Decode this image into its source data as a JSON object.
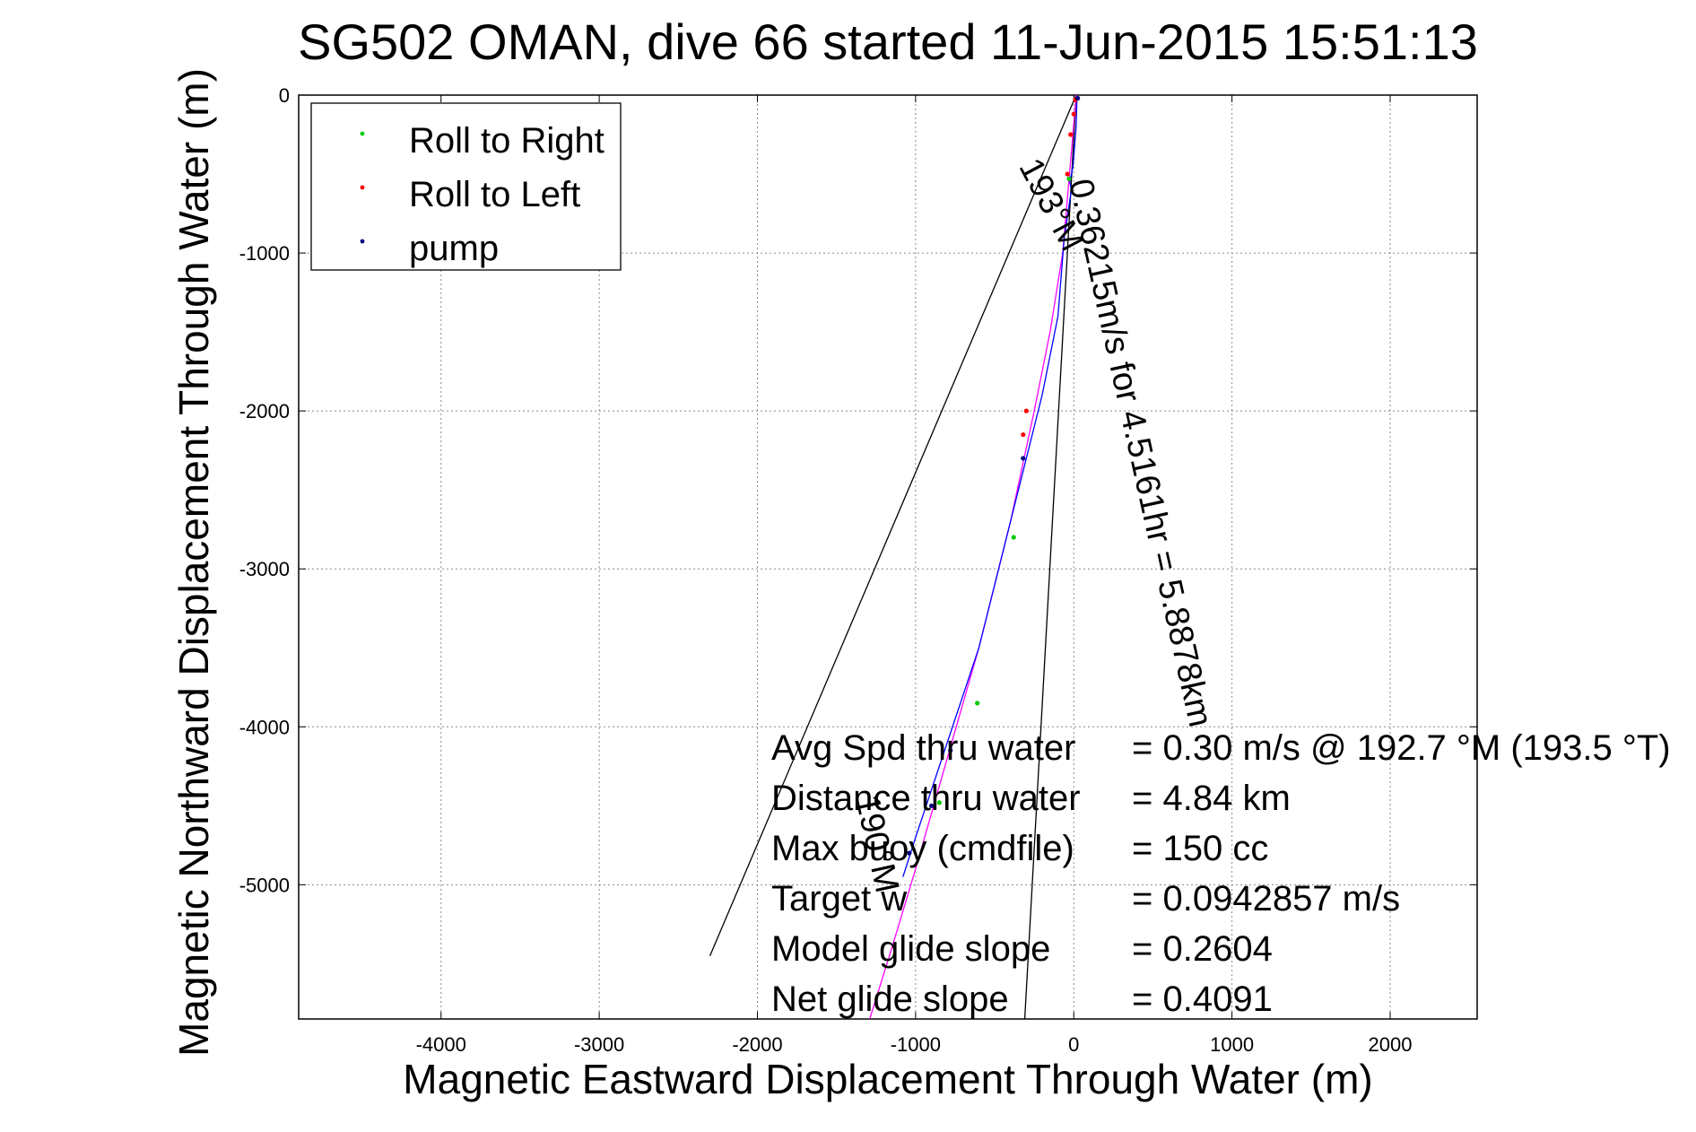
{
  "chart_data": {
    "type": "line",
    "title": "SG502 OMAN, dive 66 started 11-Jun-2015 15:51:13",
    "xlabel": "Magnetic Eastward Displacement Through Water (m)",
    "ylabel": "Magnetic Northward Displacement Through Water (m)",
    "xlim": [
      -4900,
      2550
    ],
    "ylim": [
      -5850,
      0
    ],
    "x_ticks": [
      -4000,
      -3000,
      -2000,
      -1000,
      0,
      1000,
      2000
    ],
    "y_ticks": [
      0,
      -1000,
      -2000,
      -3000,
      -4000,
      -5000
    ],
    "grid": true,
    "legend": {
      "placement": "top-left",
      "entries": [
        {
          "label": "Roll to Right",
          "color": "#00cc00"
        },
        {
          "label": "Roll to Left",
          "color": "#ff0000"
        },
        {
          "label": "pump",
          "color": "#000080"
        }
      ]
    },
    "series": [
      {
        "color": "#ff00ff",
        "x": [
          15,
          -10,
          -70,
          -150,
          -250,
          -400,
          -600,
          -800,
          -1000,
          -1150,
          -1290
        ],
        "y": [
          0,
          -300,
          -1000,
          -1500,
          -2000,
          -2700,
          -3500,
          -4200,
          -4900,
          -5400,
          -5850
        ]
      },
      {
        "color": "#0000ff",
        "x": [
          20,
          15,
          -5,
          -25,
          -15,
          -60,
          -100,
          -200,
          -300,
          -450,
          -600,
          -800,
          -1000,
          -1080
        ],
        "y": [
          -20,
          -200,
          -450,
          -550,
          -600,
          -900,
          -1400,
          -1900,
          -2300,
          -2900,
          -3500,
          -4100,
          -4700,
          -4950
        ]
      }
    ],
    "envelope_lines": [
      {
        "color": "#000000",
        "x": [
          15,
          -2300
        ],
        "y": [
          0,
          -5450
        ]
      },
      {
        "color": "#000000",
        "x": [
          15,
          -310
        ],
        "y": [
          0,
          -5850
        ]
      }
    ],
    "roll_right_points": {
      "x": [
        -30,
        -380,
        -610,
        -850
      ],
      "y": [
        -530,
        -2800,
        -3850,
        -4480
      ]
    },
    "roll_left_points": {
      "x": [
        10,
        0,
        -20,
        -40,
        -300,
        -320
      ],
      "y": [
        -30,
        -120,
        -250,
        -500,
        -2000,
        -2150
      ]
    },
    "pump_points": {
      "x": [
        25,
        -320,
        -780,
        -900,
        -1040
      ],
      "y": [
        -20,
        -2300,
        -4150,
        -4500,
        -4800
      ]
    },
    "annotations": [
      {
        "text": "0.36215m/s for 4.5161hr = 5.8878km",
        "x": -30,
        "y": -550,
        "rotation": 77.5
      },
      {
        "text": "193°M",
        "x": -350,
        "y": -450,
        "rotation": 62
      },
      {
        "text": "190°M",
        "x": -1380,
        "y": -4450,
        "rotation": 77.5
      }
    ],
    "stats": [
      {
        "label": "Avg Spd thru water",
        "value": "=  0.30 m/s @ 192.7 °M (193.5 °T)"
      },
      {
        "label": "Distance thru water",
        "value": "=  4.84 km"
      },
      {
        "label": "Max buoy (cmdfile)",
        "value": "= 150 cc"
      },
      {
        "label": "Target w",
        "value": "= 0.0942857 m/s"
      },
      {
        "label": "Model glide slope",
        "value": "= 0.2604"
      },
      {
        "label": "Net glide slope",
        "value": "= 0.4091"
      }
    ]
  }
}
